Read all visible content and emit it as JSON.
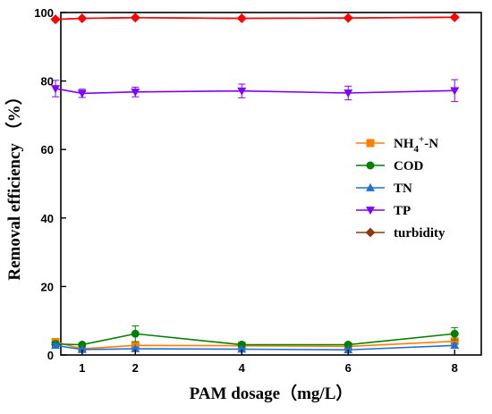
{
  "chart_data": {
    "type": "line",
    "title": "",
    "xlabel": "PAM dosage（mg/L）",
    "ylabel": "Removal efficiency （%）",
    "xlim": [
      0.6,
      8.5
    ],
    "ylim": [
      0,
      100
    ],
    "x_ticks": [
      1,
      2,
      4,
      6,
      8
    ],
    "y_ticks": [
      0,
      20,
      40,
      60,
      80,
      100
    ],
    "grid": false,
    "legend_position": "right-middle",
    "x": [
      0.5,
      1,
      2,
      4,
      6,
      8
    ],
    "series": [
      {
        "name": "NH4+-N",
        "name_parts": {
          "base": "NH",
          "sub": "4",
          "sup": "+",
          "rest": "-N"
        },
        "color": "#ff8000",
        "marker": "square",
        "values": [
          3.8,
          1.8,
          2.8,
          2.7,
          2.5,
          4.0
        ],
        "errors": [
          0.6,
          0.4,
          0.8,
          0.5,
          0.5,
          0.8
        ]
      },
      {
        "name": "COD",
        "color": "#008000",
        "marker": "circle",
        "values": [
          3.2,
          3.0,
          6.2,
          3.0,
          3.0,
          6.2
        ],
        "errors": [
          0.7,
          0.5,
          2.3,
          0.5,
          0.5,
          1.8
        ]
      },
      {
        "name": "TN",
        "color": "#1f6fd6",
        "marker": "triangle-up",
        "values": [
          2.8,
          1.6,
          1.8,
          1.7,
          1.5,
          2.8
        ],
        "errors": [
          0.5,
          0.3,
          0.5,
          0.4,
          0.4,
          0.6
        ]
      },
      {
        "name": "TP",
        "color": "#8000ff",
        "marker": "triangle-down",
        "values": [
          77.8,
          76.4,
          76.8,
          77.1,
          76.5,
          77.2
        ],
        "errors": [
          2.4,
          1.2,
          1.4,
          2.0,
          2.0,
          3.2
        ]
      },
      {
        "name": "turbidity",
        "color": "#8b3a0f",
        "marker": "diamond",
        "values": [
          98.0,
          98.3,
          98.5,
          98.3,
          98.4,
          98.6
        ],
        "errors": [
          0.4,
          0.3,
          0.3,
          0.3,
          0.3,
          0.3
        ]
      },
      {
        "name": "",
        "color": "#ff0000",
        "marker": "diamond",
        "values": [
          98.0,
          98.3,
          98.5,
          98.3,
          98.4,
          98.6
        ],
        "errors": [
          0.4,
          0.3,
          0.3,
          0.3,
          0.3,
          0.3
        ]
      }
    ]
  }
}
